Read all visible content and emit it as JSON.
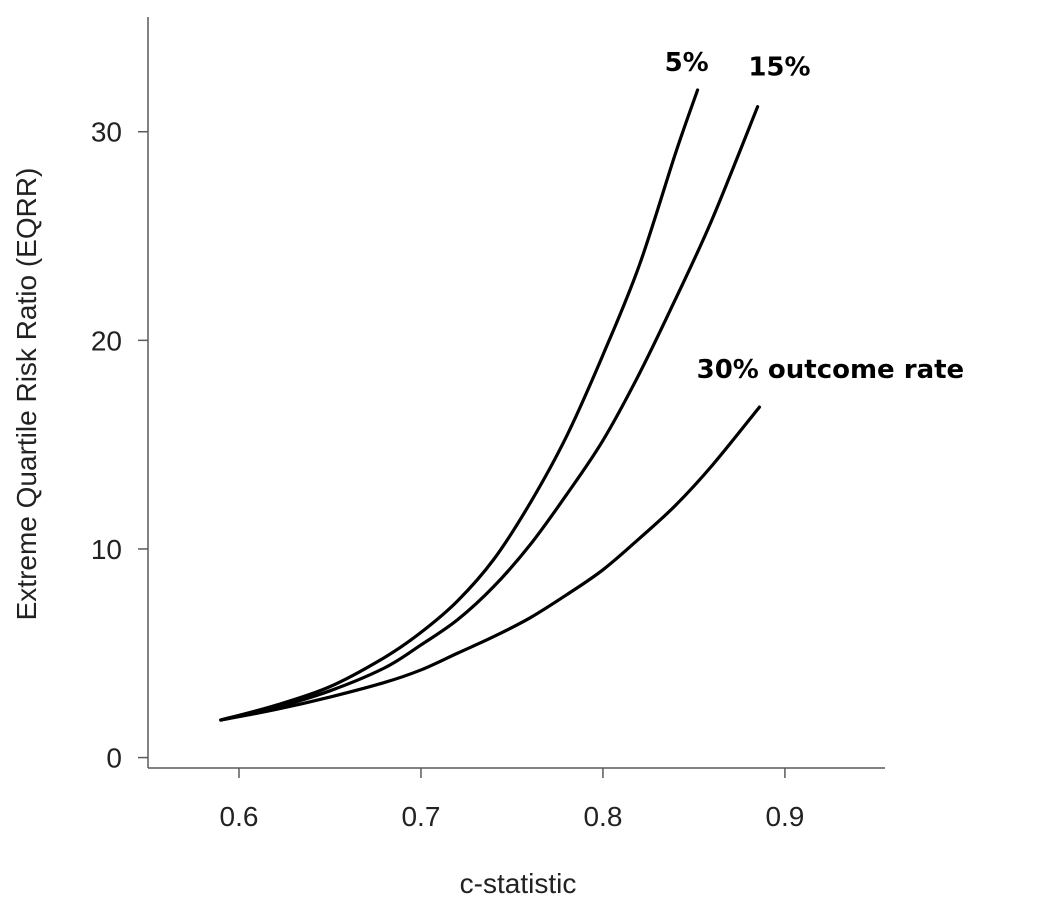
{
  "chart_data": {
    "type": "line",
    "title": "",
    "xlabel": "c-statistic",
    "ylabel": "Extreme Quartile Risk Ratio (EQRR)",
    "xlim": [
      0.55,
      0.955
    ],
    "ylim": [
      -0.5,
      35.5
    ],
    "xticks": [
      0.6,
      0.7,
      0.8,
      0.9
    ],
    "xtick_labels": [
      "0.6",
      "0.7",
      "0.8",
      "0.9"
    ],
    "yticks": [
      0,
      10,
      20,
      30
    ],
    "ytick_labels": [
      "0",
      "10",
      "20",
      "30"
    ],
    "grid": false,
    "legend": "none",
    "series": [
      {
        "name": "5%",
        "x": [
          0.59,
          0.62,
          0.65,
          0.68,
          0.7,
          0.72,
          0.74,
          0.76,
          0.78,
          0.8,
          0.82,
          0.84,
          0.852
        ],
        "y": [
          1.8,
          2.5,
          3.4,
          4.8,
          6.0,
          7.5,
          9.5,
          12.2,
          15.4,
          19.3,
          23.6,
          29.0,
          32.0
        ]
      },
      {
        "name": "15%",
        "x": [
          0.59,
          0.62,
          0.65,
          0.68,
          0.7,
          0.72,
          0.74,
          0.76,
          0.78,
          0.8,
          0.82,
          0.84,
          0.86,
          0.885
        ],
        "y": [
          1.8,
          2.4,
          3.2,
          4.3,
          5.4,
          6.6,
          8.2,
          10.2,
          12.6,
          15.2,
          18.4,
          22.0,
          25.8,
          31.2
        ]
      },
      {
        "name": "30% outcome rate",
        "x": [
          0.59,
          0.62,
          0.65,
          0.68,
          0.7,
          0.72,
          0.74,
          0.76,
          0.78,
          0.8,
          0.82,
          0.84,
          0.86,
          0.886
        ],
        "y": [
          1.8,
          2.3,
          2.9,
          3.6,
          4.2,
          5.0,
          5.8,
          6.7,
          7.8,
          9.0,
          10.5,
          12.1,
          14.0,
          16.8
        ]
      }
    ],
    "annotations": [
      {
        "text": "5%",
        "x": 0.846,
        "y": 32.9
      },
      {
        "text": "15%",
        "x": 0.897,
        "y": 32.7
      },
      {
        "text": "30% outcome rate",
        "x": 0.925,
        "y": 18.2
      }
    ]
  }
}
